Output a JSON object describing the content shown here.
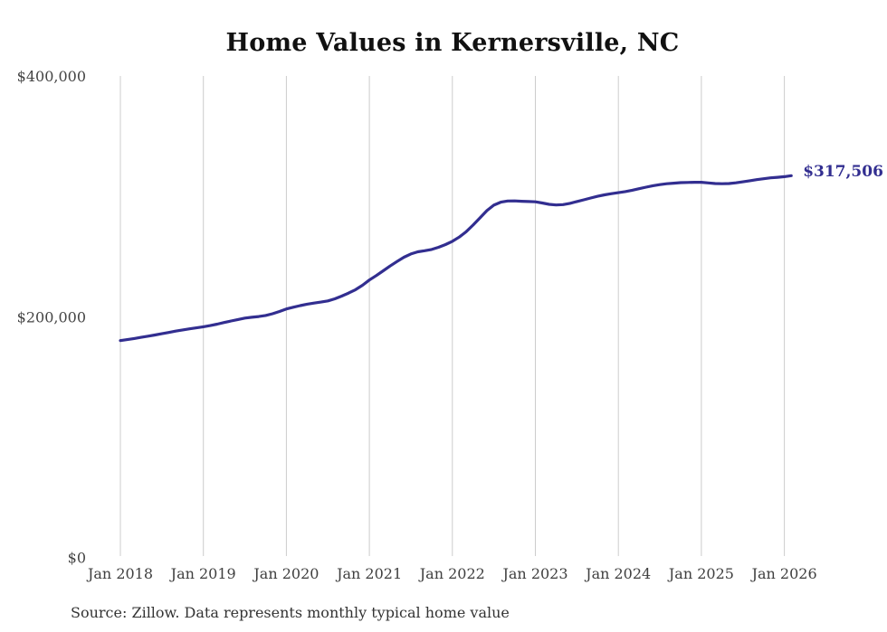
{
  "title": "Home Values in Kernersville, NC",
  "footer": {
    "source_note": "Source: Zillow. Data represents monthly typical home value"
  },
  "colors": {
    "line": "#322e90",
    "annotation": "#322e90",
    "grid": "#cccccc",
    "tick_text": "#3f3f3f",
    "title_text": "#111111"
  },
  "chart_data": {
    "type": "line",
    "title": "Home Values in Kernersville, NC",
    "xlabel": "",
    "ylabel": "",
    "ylim": [
      0,
      400000
    ],
    "grid": "vertical-only",
    "legend": "none",
    "end_annotation": "$317,506",
    "latest_value": 317506,
    "y_ticks": [
      {
        "value": 0,
        "label": "$0"
      },
      {
        "value": 200000,
        "label": "$200,000"
      },
      {
        "value": 400000,
        "label": "$400,000"
      }
    ],
    "x_tick_labels": [
      "Jan 2018",
      "Jan 2019",
      "Jan 2020",
      "Jan 2021",
      "Jan 2022",
      "Jan 2023",
      "Jan 2024",
      "Jan 2025",
      "Jan 2026"
    ],
    "series": [
      {
        "name": "Typical home value",
        "x": [
          "2018-01",
          "2018-02",
          "2018-03",
          "2018-04",
          "2018-05",
          "2018-06",
          "2018-07",
          "2018-08",
          "2018-09",
          "2018-10",
          "2018-11",
          "2018-12",
          "2019-01",
          "2019-02",
          "2019-03",
          "2019-04",
          "2019-05",
          "2019-06",
          "2019-07",
          "2019-08",
          "2019-09",
          "2019-10",
          "2019-11",
          "2019-12",
          "2020-01",
          "2020-02",
          "2020-03",
          "2020-04",
          "2020-05",
          "2020-06",
          "2020-07",
          "2020-08",
          "2020-09",
          "2020-10",
          "2020-11",
          "2020-12",
          "2021-01",
          "2021-02",
          "2021-03",
          "2021-04",
          "2021-05",
          "2021-06",
          "2021-07",
          "2021-08",
          "2021-09",
          "2021-10",
          "2021-11",
          "2021-12",
          "2022-01",
          "2022-02",
          "2022-03",
          "2022-04",
          "2022-05",
          "2022-06",
          "2022-07",
          "2022-08",
          "2022-09",
          "2022-10",
          "2022-11",
          "2022-12",
          "2023-01",
          "2023-02",
          "2023-03",
          "2023-04",
          "2023-05",
          "2023-06",
          "2023-07",
          "2023-08",
          "2023-09",
          "2023-10",
          "2023-11",
          "2023-12",
          "2024-01",
          "2024-02",
          "2024-03",
          "2024-04",
          "2024-05",
          "2024-06",
          "2024-07",
          "2024-08",
          "2024-09",
          "2024-10",
          "2024-11",
          "2024-12",
          "2025-01",
          "2025-02",
          "2025-03",
          "2025-04",
          "2025-05",
          "2025-06",
          "2025-07",
          "2025-08",
          "2025-09",
          "2025-10",
          "2025-11",
          "2025-12",
          "2026-01",
          "2026-02"
        ],
        "values": [
          180500,
          181300,
          182200,
          183200,
          184200,
          185200,
          186200,
          187300,
          188400,
          189400,
          190300,
          191100,
          192000,
          193000,
          194200,
          195500,
          196800,
          198000,
          199200,
          199900,
          200500,
          201400,
          202800,
          204700,
          206800,
          208200,
          209600,
          210800,
          211700,
          212500,
          213500,
          215200,
          217500,
          220000,
          222800,
          226500,
          230800,
          234500,
          238500,
          242500,
          246200,
          249800,
          252500,
          254300,
          255200,
          256200,
          258000,
          260300,
          263000,
          266500,
          271000,
          276500,
          282500,
          288500,
          293000,
          295500,
          296500,
          296600,
          296300,
          296000,
          295800,
          294800,
          293700,
          293200,
          293500,
          294500,
          296000,
          297500,
          299000,
          300400,
          301600,
          302600,
          303400,
          304300,
          305400,
          306700,
          308000,
          309200,
          310100,
          310800,
          311300,
          311700,
          311900,
          312000,
          312000,
          311500,
          311000,
          310800,
          311000,
          311600,
          312400,
          313300,
          314200,
          315000,
          315700,
          316200,
          316700,
          317506
        ]
      }
    ],
    "source": "Zillow"
  }
}
